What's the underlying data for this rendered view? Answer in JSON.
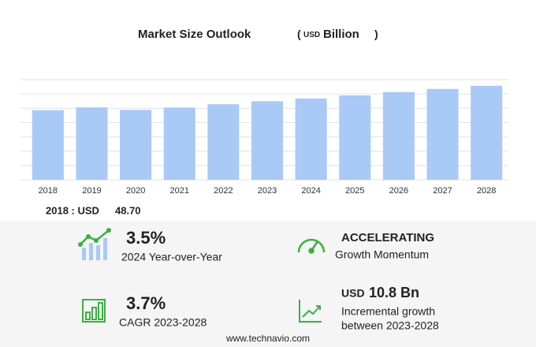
{
  "chart_data": {
    "type": "bar",
    "title": "Market Size Outlook",
    "unit_parts": [
      "(",
      "USD",
      "Billion",
      ")"
    ],
    "categories": [
      "2018",
      "2019",
      "2020",
      "2021",
      "2022",
      "2023",
      "2024",
      "2025",
      "2026",
      "2027",
      "2028"
    ],
    "values": [
      48.7,
      50.6,
      48.9,
      50.5,
      52.8,
      54.9,
      56.8,
      59.0,
      61.3,
      63.5,
      65.7
    ],
    "color": "#a9c9f7",
    "ylim": [
      0,
      70
    ],
    "yticks": [
      0,
      10,
      20,
      30,
      40,
      50,
      60,
      70
    ],
    "grid": true
  },
  "base_label": "2018 : USD",
  "base_value": "48.70",
  "stats": [
    {
      "value": "3.5%",
      "label": "2024 Year-over-Year"
    },
    {
      "value": "ACCELERATING",
      "label": "Growth Momentum"
    },
    {
      "value": "3.7%",
      "label": "CAGR 2023-2028"
    },
    {
      "value_prefix": "USD",
      "value": "10.8 Bn",
      "label_lines": [
        "Incremental growth",
        "between 2023-2028"
      ]
    }
  ],
  "footer": "www.technavio.com"
}
